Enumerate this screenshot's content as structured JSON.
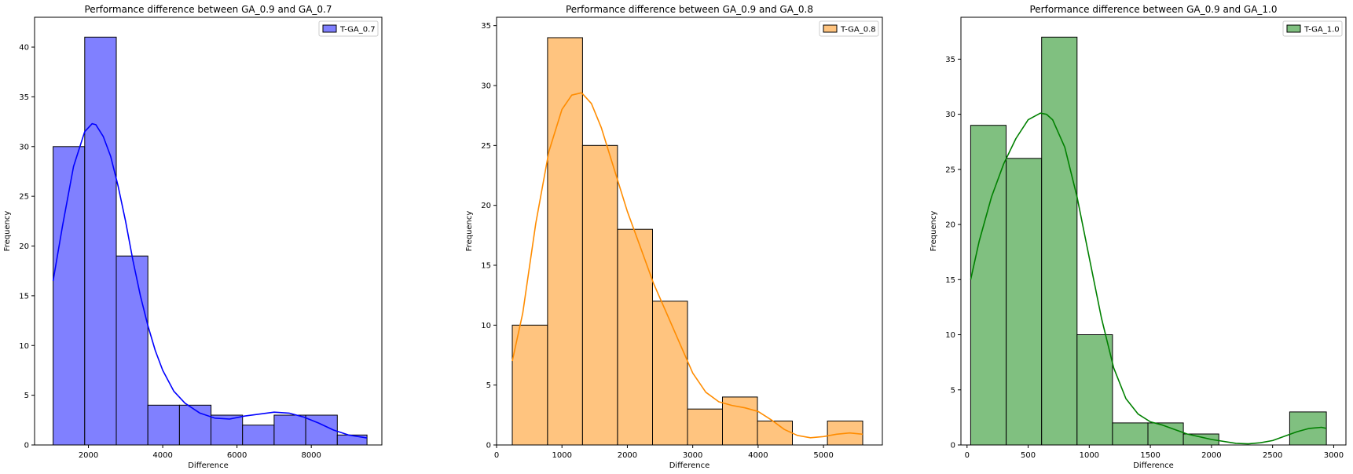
{
  "chart_data": [
    {
      "type": "histogram",
      "title": "Performance difference between GA_0.9 and GA_0.7",
      "xlabel": "Difference",
      "ylabel": "Frequency",
      "legend": {
        "label": "T-GA_0.7",
        "position": "top-right"
      },
      "bar_color": "#8080ff",
      "kde_color": "#0000ff",
      "xlim": [
        550,
        9900
      ],
      "ylim": [
        0,
        43
      ],
      "xticks": [
        2000,
        4000,
        6000,
        8000
      ],
      "yticks": [
        0,
        5,
        10,
        15,
        20,
        25,
        30,
        35,
        40
      ],
      "bin_edges": [
        1050,
        1900,
        2750,
        3600,
        4450,
        5300,
        6150,
        7000,
        7850,
        8700,
        9500
      ],
      "counts": [
        30,
        41,
        19,
        4,
        4,
        3,
        2,
        3,
        3,
        1
      ],
      "kde": {
        "x": [
          1050,
          1300,
          1600,
          1900,
          2100,
          2200,
          2400,
          2600,
          2800,
          3000,
          3200,
          3400,
          3600,
          3800,
          4000,
          4300,
          4600,
          5000,
          5400,
          5800,
          6200,
          6600,
          7000,
          7400,
          7800,
          8200,
          8600,
          9000,
          9500
        ],
        "y": [
          16.5,
          22,
          28,
          31.5,
          32.3,
          32.2,
          31,
          29,
          26,
          22.5,
          18.5,
          15,
          12,
          9.5,
          7.5,
          5.4,
          4.2,
          3.2,
          2.7,
          2.6,
          2.9,
          3.1,
          3.3,
          3.2,
          2.8,
          2.2,
          1.5,
          1,
          0.7
        ]
      }
    },
    {
      "type": "histogram",
      "title": "Performance difference between GA_0.9 and GA_0.8",
      "xlabel": "Difference",
      "ylabel": "Frequency",
      "legend": {
        "label": "T-GA_0.8",
        "position": "top-right"
      },
      "bar_color": "#ffc47f",
      "kde_color": "#ff8c00",
      "xlim": [
        0,
        5900
      ],
      "ylim": [
        0,
        35.7
      ],
      "xticks": [
        0,
        1000,
        2000,
        3000,
        4000,
        5000
      ],
      "yticks": [
        0,
        5,
        10,
        15,
        20,
        25,
        30,
        35
      ],
      "bin_edges": [
        240,
        780,
        1315,
        1850,
        2385,
        2920,
        3455,
        3990,
        4525,
        5060,
        5600
      ],
      "counts": [
        10,
        34,
        25,
        18,
        12,
        3,
        4,
        2,
        0,
        2
      ],
      "kde": {
        "x": [
          240,
          400,
          600,
          800,
          1000,
          1150,
          1300,
          1450,
          1600,
          1800,
          2000,
          2200,
          2400,
          2600,
          2800,
          3000,
          3200,
          3400,
          3600,
          3800,
          4000,
          4200,
          4400,
          4600,
          4800,
          5000,
          5200,
          5400,
          5600
        ],
        "y": [
          7,
          11,
          18.5,
          24.5,
          28,
          29.2,
          29.4,
          28.5,
          26.5,
          23,
          19.5,
          16.5,
          13.5,
          11,
          8.5,
          6,
          4.4,
          3.6,
          3.3,
          3.1,
          2.8,
          2.1,
          1.3,
          0.8,
          0.6,
          0.7,
          0.9,
          1,
          0.9
        ]
      }
    },
    {
      "type": "histogram",
      "title": "Performance difference between GA_0.9 and GA_1.0",
      "xlabel": "Difference",
      "ylabel": "Frequency",
      "legend": {
        "label": "T-GA_1.0",
        "position": "top-right"
      },
      "bar_color": "#80c080",
      "kde_color": "#008000",
      "xlim": [
        -50,
        3100
      ],
      "ylim": [
        0,
        38.8
      ],
      "xticks": [
        0,
        500,
        1000,
        1500,
        2000,
        2500,
        3000
      ],
      "yticks": [
        0,
        5,
        10,
        15,
        20,
        25,
        30,
        35
      ],
      "bin_edges": [
        30,
        320,
        610,
        900,
        1190,
        1480,
        1770,
        2060,
        2350,
        2640,
        2940
      ],
      "counts": [
        29,
        26,
        37,
        10,
        2,
        2,
        1,
        0,
        0,
        3
      ],
      "kde": {
        "x": [
          30,
          100,
          200,
          300,
          400,
          500,
          600,
          650,
          700,
          800,
          900,
          1000,
          1100,
          1200,
          1300,
          1400,
          1500,
          1600,
          1800,
          2000,
          2200,
          2300,
          2400,
          2500,
          2600,
          2700,
          2800,
          2900,
          2940
        ],
        "y": [
          15,
          18.5,
          22.5,
          25.5,
          27.8,
          29.5,
          30.1,
          30,
          29.5,
          27,
          22.5,
          17,
          11.5,
          7,
          4.2,
          2.8,
          2.1,
          1.8,
          1,
          0.5,
          0.15,
          0.1,
          0.2,
          0.4,
          0.8,
          1.2,
          1.5,
          1.6,
          1.5
        ]
      }
    }
  ]
}
